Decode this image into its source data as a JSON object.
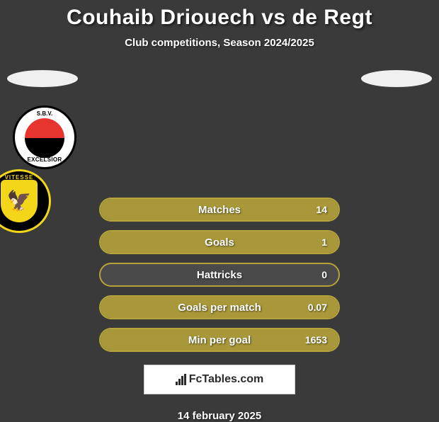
{
  "title": "Couhaib Driouech vs de Regt",
  "subtitle": "Club competitions, Season 2024/2025",
  "date": "14 february 2025",
  "brand": "FcTables.com",
  "clubs": {
    "left": {
      "name": "SBV Excelsior",
      "text_top": "S.B.V.",
      "text_bottom": "EXCELSIOR"
    },
    "right": {
      "name": "Vitesse",
      "arc": "VITESSE"
    }
  },
  "colors": {
    "row_border": "#b6a33a",
    "row_bg": "#4a4a4a",
    "row_fill": "#a8983a"
  },
  "stats": [
    {
      "label": "Matches",
      "value": "14",
      "fill_pct": 100
    },
    {
      "label": "Goals",
      "value": "1",
      "fill_pct": 100
    },
    {
      "label": "Hattricks",
      "value": "0",
      "fill_pct": 0
    },
    {
      "label": "Goals per match",
      "value": "0.07",
      "fill_pct": 100
    },
    {
      "label": "Min per goal",
      "value": "1653",
      "fill_pct": 100
    }
  ]
}
